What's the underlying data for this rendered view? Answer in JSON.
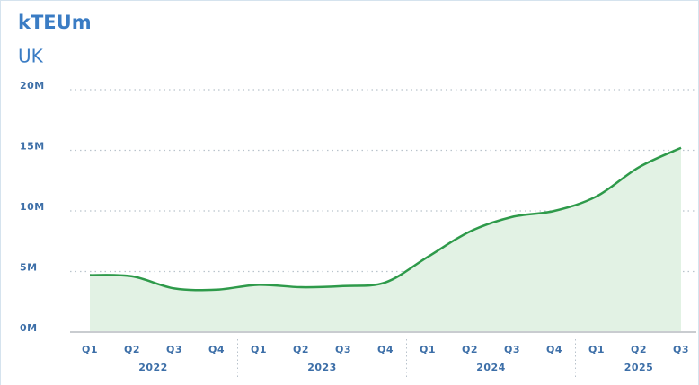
{
  "chart_data": {
    "type": "area",
    "title": "kTEUm",
    "subtitle": "UK",
    "groups": [
      {
        "label": "2022",
        "categories": [
          "Q1",
          "Q2",
          "Q3",
          "Q4"
        ]
      },
      {
        "label": "2023",
        "categories": [
          "Q1",
          "Q2",
          "Q3",
          "Q4"
        ]
      },
      {
        "label": "2024",
        "categories": [
          "Q1",
          "Q2",
          "Q3",
          "Q4"
        ]
      },
      {
        "label": "2025",
        "categories": [
          "Q1",
          "Q2",
          "Q3"
        ]
      }
    ],
    "values": [
      4700000,
      4600000,
      3600000,
      3500000,
      3900000,
      3700000,
      3800000,
      4100000,
      6200000,
      8300000,
      9500000,
      10000000,
      11200000,
      13600000,
      15200000
    ],
    "color": "#2e9a4a",
    "fill": "#e2f2e4",
    "ylim": [
      0,
      20000000
    ],
    "yticks": [
      {
        "value": 0,
        "label": "0M"
      },
      {
        "value": 5000000,
        "label": "5M"
      },
      {
        "value": 10000000,
        "label": "10M"
      },
      {
        "value": 15000000,
        "label": "15M"
      },
      {
        "value": 20000000,
        "label": "20M"
      }
    ],
    "grid": true
  }
}
